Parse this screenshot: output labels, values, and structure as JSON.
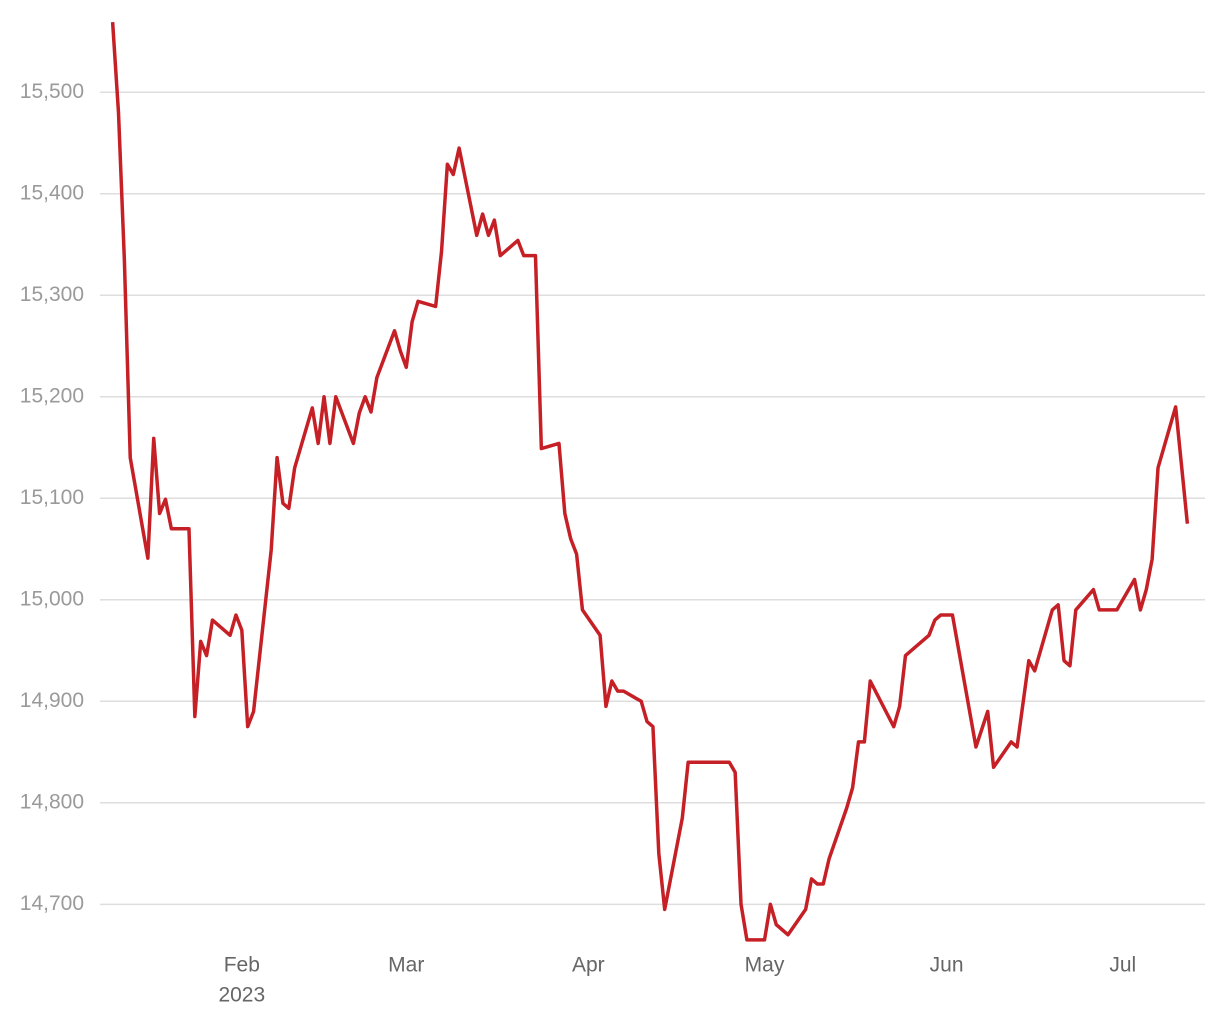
{
  "chart_data": {
    "type": "line",
    "x": [
      10,
      11,
      12,
      13,
      16,
      17,
      18,
      19,
      20,
      23,
      24,
      25,
      26,
      27,
      30,
      31,
      32,
      33,
      34,
      37,
      38,
      39,
      40,
      41,
      44,
      45,
      46,
      47,
      48,
      51,
      52,
      53,
      54,
      55,
      58,
      59,
      60,
      61,
      62,
      65,
      66,
      67,
      68,
      69,
      72,
      73,
      74,
      75,
      76,
      79,
      80,
      82,
      83,
      86,
      87,
      88,
      89,
      90,
      93,
      94,
      95,
      96,
      97,
      100,
      101,
      102,
      103,
      104,
      107,
      108,
      115,
      116,
      117,
      118,
      121,
      122,
      123,
      125,
      128,
      129,
      130,
      131,
      132,
      135,
      136,
      137,
      138,
      139,
      143,
      144,
      145,
      149,
      150,
      151,
      153,
      157,
      159,
      160,
      163,
      164,
      166,
      167,
      170,
      171,
      172,
      173,
      174,
      177,
      178,
      181,
      184,
      185,
      186,
      187,
      188,
      191,
      193
    ],
    "series": [
      {
        "color": "#c62027",
        "values": [
          15569,
          15480,
          15335,
          15140,
          15041,
          15159,
          15085,
          15099,
          15070,
          15070,
          14885,
          14959,
          14945,
          14980,
          14965,
          14985,
          14970,
          14875,
          14890,
          15049,
          15140,
          15095,
          15090,
          15130,
          15189,
          15154,
          15200,
          15154,
          15200,
          15154,
          15184,
          15200,
          15185,
          15219,
          15265,
          15245,
          15229,
          15274,
          15294,
          15289,
          15343,
          15429,
          15419,
          15445,
          15359,
          15380,
          15359,
          15374,
          15339,
          15354,
          15339,
          15339,
          15149,
          15154,
          15085,
          15060,
          15045,
          14990,
          14965,
          14895,
          14920,
          14910,
          14910,
          14900,
          14880,
          14875,
          14750,
          14695,
          14785,
          14840,
          14840,
          14830,
          14700,
          14665,
          14665,
          14700,
          14680,
          14670,
          14695,
          14725,
          14720,
          14720,
          14745,
          14795,
          14815,
          14860,
          14860,
          14920,
          14875,
          14895,
          14945,
          14965,
          14980,
          14985,
          14985,
          14855,
          14890,
          14835,
          14860,
          14855,
          14940,
          14930,
          14990,
          14995,
          14940,
          14935,
          14990,
          15010,
          14990,
          14990,
          15020,
          14990,
          15010,
          15040,
          15130,
          15190,
          15075
        ]
      }
    ],
    "xlim": [
      7,
      196
    ],
    "xticks": [
      {
        "value": 32,
        "label": "Feb"
      },
      {
        "value": 60,
        "label": "Mar"
      },
      {
        "value": 91,
        "label": "Apr"
      },
      {
        "value": 121,
        "label": "May"
      },
      {
        "value": 152,
        "label": "Jun"
      },
      {
        "value": 182,
        "label": "Jul"
      }
    ],
    "x_year_label": "2023",
    "ylim": [
      14655,
      15580
    ],
    "yticks": [
      {
        "value": 14700,
        "label": "14,700"
      },
      {
        "value": 14800,
        "label": "14,800"
      },
      {
        "value": 14900,
        "label": "14,900"
      },
      {
        "value": 15000,
        "label": "15,000"
      },
      {
        "value": 15100,
        "label": "15,100"
      },
      {
        "value": 15200,
        "label": "15,200"
      },
      {
        "value": 15300,
        "label": "15,300"
      },
      {
        "value": 15400,
        "label": "15,400"
      },
      {
        "value": 15500,
        "label": "15,500"
      }
    ],
    "grid": true
  }
}
